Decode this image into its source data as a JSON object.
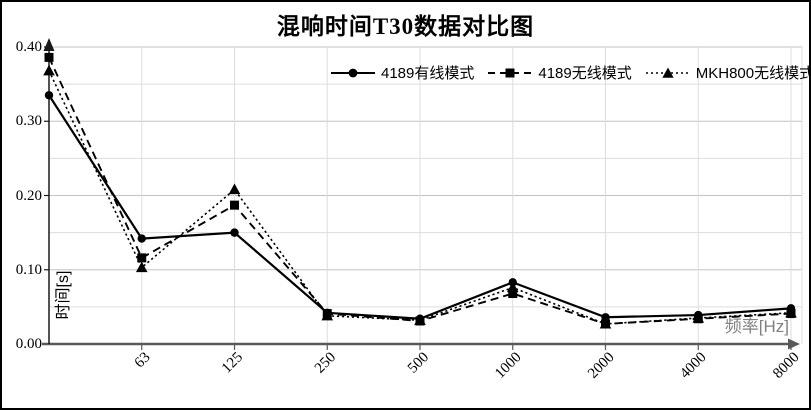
{
  "title": "混响时间T30数据对比图",
  "colors": {
    "series": "#000000",
    "grid_major": "#c3c3c3",
    "grid_minor": "#dddddd",
    "x_axis": "#595959",
    "y_axis": "#1a1a1a",
    "x_axis_title": "#808080"
  },
  "chart_data": {
    "type": "line",
    "title": "混响时间T30数据对比图",
    "xlabel": "频率[Hz]",
    "ylabel": "时间[s]",
    "ylim": [
      0,
      0.4
    ],
    "y_major_step": 0.1,
    "y_minor_step": 0.05,
    "y_tick_labels": [
      "0.00",
      "0.10",
      "0.20",
      "0.30",
      "0.40"
    ],
    "categories": [
      "",
      "63",
      "125",
      "250",
      "500",
      "1000",
      "2000",
      "4000",
      "8000"
    ],
    "grid": true,
    "legend_position": "top-center",
    "series": [
      {
        "name": "4189有线模式",
        "marker": "circle",
        "line_style": "solid",
        "values": [
          0.335,
          0.142,
          0.15,
          0.042,
          0.034,
          0.083,
          0.036,
          0.039,
          0.048
        ]
      },
      {
        "name": "4189无线模式",
        "marker": "square",
        "line_style": "dashed",
        "values": [
          0.386,
          0.116,
          0.187,
          0.041,
          0.031,
          0.068,
          0.027,
          0.034,
          0.041
        ]
      },
      {
        "name": "MKH800无线模式",
        "marker": "triangle",
        "line_style": "dotted",
        "values": [
          0.368,
          0.103,
          0.208,
          0.038,
          0.032,
          0.076,
          0.027,
          0.035,
          0.042
        ]
      }
    ]
  }
}
